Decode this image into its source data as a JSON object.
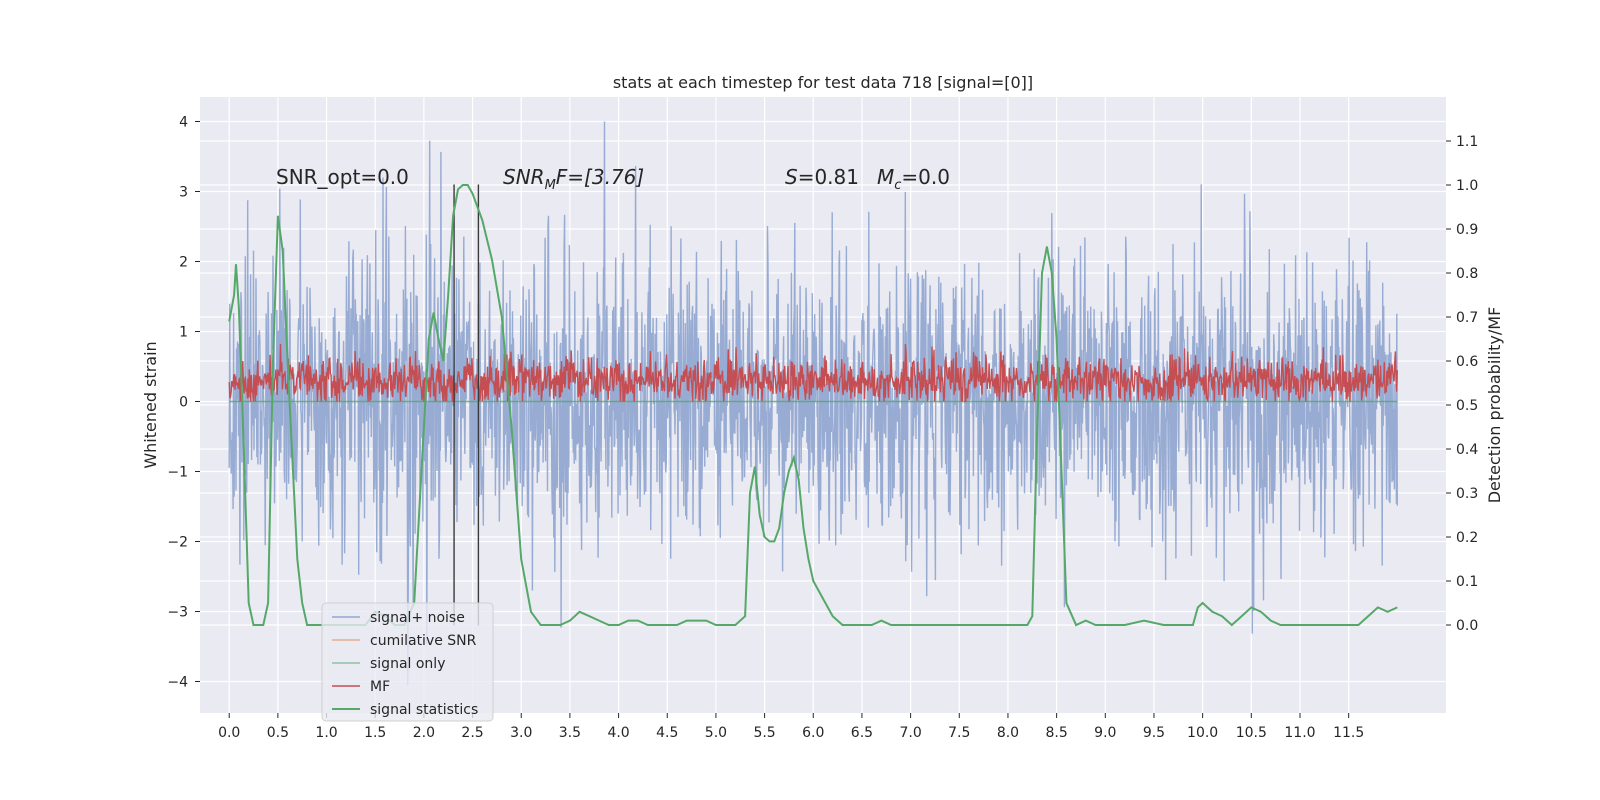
{
  "chart_data": {
    "type": "line",
    "title": "stats at each timestep for test data 718 [signal=[0]]",
    "xlabel": "",
    "ylabel": "Whitened strain",
    "ylabel_right": "Detection probability/MF",
    "xlim": [
      -0.3,
      12.5
    ],
    "ylim": [
      -4.45,
      4.35
    ],
    "ylim_right": [
      -0.2,
      1.2
    ],
    "x_ticks": [
      "0.0",
      "0.5",
      "1.0",
      "1.5",
      "2.0",
      "2.5",
      "3.0",
      "3.5",
      "4.0",
      "4.5",
      "5.0",
      "5.5",
      "6.0",
      "6.5",
      "7.0",
      "7.5",
      "8.0",
      "8.5",
      "9.0",
      "9.5",
      "10.0",
      "10.5",
      "11.0",
      "11.5"
    ],
    "y_ticks": [
      "4",
      "3",
      "2",
      "1",
      "0",
      "−1",
      "−2",
      "−3",
      "−4"
    ],
    "y_ticks_right": [
      "1.1",
      "1.0",
      "0.9",
      "0.8",
      "0.7",
      "0.6",
      "0.5",
      "0.4",
      "0.3",
      "0.2",
      "0.1",
      "0.0"
    ],
    "grid": true,
    "legend_position": "lower-left",
    "annotations": {
      "snr_opt": "SNR_opt=0.0",
      "snr_mf_main": "SNR",
      "snr_mf_sub": "M",
      "snr_mf_rest": "F=[3.76]",
      "stat_s": "S",
      "stat_s_rest": "=0.81",
      "stat_mc": "M",
      "stat_mc_sub": "c",
      "stat_mc_rest": "=0.0"
    },
    "vertical_lines_x": [
      2.31,
      2.56
    ],
    "series": [
      {
        "name": "signal+ noise",
        "color": "#92a8d1",
        "axis": "left",
        "approx_range": [
          -4.1,
          4.0
        ],
        "t_range": [
          0.0,
          12.0
        ]
      },
      {
        "name": "cumilative SNR",
        "color": "#dd8452",
        "axis": "left"
      },
      {
        "name": "signal only",
        "color": "#55a868",
        "axis": "left",
        "values_note": "0.0"
      },
      {
        "name": "MF",
        "color": "#c44e52",
        "axis": "left",
        "approx_range": [
          0.0,
          0.95
        ],
        "t_range": [
          0.0,
          12.0
        ]
      },
      {
        "name": "signal statistics",
        "color": "#55a868",
        "axis": "right",
        "points": [
          [
            0.0,
            0.69
          ],
          [
            0.05,
            0.75
          ],
          [
            0.07,
            0.82
          ],
          [
            0.1,
            0.72
          ],
          [
            0.15,
            0.4
          ],
          [
            0.2,
            0.05
          ],
          [
            0.25,
            0.0
          ],
          [
            0.3,
            0.0
          ],
          [
            0.35,
            0.0
          ],
          [
            0.4,
            0.05
          ],
          [
            0.45,
            0.6
          ],
          [
            0.5,
            0.93
          ],
          [
            0.55,
            0.85
          ],
          [
            0.6,
            0.6
          ],
          [
            0.7,
            0.15
          ],
          [
            0.75,
            0.05
          ],
          [
            0.8,
            0.0
          ],
          [
            0.9,
            0.0
          ],
          [
            1.0,
            0.0
          ],
          [
            1.1,
            0.0
          ],
          [
            1.2,
            0.0
          ],
          [
            1.3,
            0.0
          ],
          [
            1.4,
            0.0
          ],
          [
            1.5,
            0.03
          ],
          [
            1.6,
            0.02
          ],
          [
            1.7,
            0.0
          ],
          [
            1.8,
            0.0
          ],
          [
            1.9,
            0.05
          ],
          [
            2.0,
            0.45
          ],
          [
            2.05,
            0.65
          ],
          [
            2.1,
            0.71
          ],
          [
            2.15,
            0.65
          ],
          [
            2.2,
            0.6
          ],
          [
            2.25,
            0.75
          ],
          [
            2.3,
            0.93
          ],
          [
            2.35,
            0.99
          ],
          [
            2.4,
            1.0
          ],
          [
            2.45,
            1.0
          ],
          [
            2.5,
            0.98
          ],
          [
            2.6,
            0.92
          ],
          [
            2.7,
            0.83
          ],
          [
            2.8,
            0.7
          ],
          [
            2.9,
            0.45
          ],
          [
            3.0,
            0.15
          ],
          [
            3.1,
            0.03
          ],
          [
            3.2,
            0.0
          ],
          [
            3.3,
            0.0
          ],
          [
            3.4,
            0.0
          ],
          [
            3.5,
            0.01
          ],
          [
            3.6,
            0.03
          ],
          [
            3.7,
            0.02
          ],
          [
            3.8,
            0.01
          ],
          [
            3.9,
            0.0
          ],
          [
            4.0,
            0.0
          ],
          [
            4.1,
            0.01
          ],
          [
            4.2,
            0.01
          ],
          [
            4.3,
            0.0
          ],
          [
            4.4,
            0.0
          ],
          [
            4.5,
            0.0
          ],
          [
            4.6,
            0.0
          ],
          [
            4.7,
            0.01
          ],
          [
            4.8,
            0.01
          ],
          [
            4.9,
            0.01
          ],
          [
            5.0,
            0.0
          ],
          [
            5.1,
            0.0
          ],
          [
            5.2,
            0.0
          ],
          [
            5.3,
            0.02
          ],
          [
            5.35,
            0.3
          ],
          [
            5.4,
            0.36
          ],
          [
            5.45,
            0.25
          ],
          [
            5.5,
            0.2
          ],
          [
            5.55,
            0.19
          ],
          [
            5.6,
            0.19
          ],
          [
            5.65,
            0.22
          ],
          [
            5.7,
            0.3
          ],
          [
            5.75,
            0.35
          ],
          [
            5.8,
            0.38
          ],
          [
            5.85,
            0.33
          ],
          [
            5.9,
            0.22
          ],
          [
            5.95,
            0.15
          ],
          [
            6.0,
            0.1
          ],
          [
            6.1,
            0.06
          ],
          [
            6.2,
            0.02
          ],
          [
            6.3,
            0.0
          ],
          [
            6.4,
            0.0
          ],
          [
            6.5,
            0.0
          ],
          [
            6.6,
            0.0
          ],
          [
            6.7,
            0.01
          ],
          [
            6.8,
            0.0
          ],
          [
            6.9,
            0.0
          ],
          [
            7.0,
            0.0
          ],
          [
            7.2,
            0.0
          ],
          [
            7.4,
            0.0
          ],
          [
            7.6,
            0.0
          ],
          [
            7.8,
            0.0
          ],
          [
            8.0,
            0.0
          ],
          [
            8.1,
            0.0
          ],
          [
            8.2,
            0.0
          ],
          [
            8.25,
            0.02
          ],
          [
            8.3,
            0.45
          ],
          [
            8.35,
            0.8
          ],
          [
            8.4,
            0.86
          ],
          [
            8.45,
            0.8
          ],
          [
            8.5,
            0.65
          ],
          [
            8.55,
            0.35
          ],
          [
            8.6,
            0.05
          ],
          [
            8.7,
            0.0
          ],
          [
            8.8,
            0.01
          ],
          [
            8.9,
            0.0
          ],
          [
            9.0,
            0.0
          ],
          [
            9.2,
            0.0
          ],
          [
            9.4,
            0.01
          ],
          [
            9.6,
            0.0
          ],
          [
            9.8,
            0.0
          ],
          [
            9.9,
            0.0
          ],
          [
            9.95,
            0.04
          ],
          [
            10.0,
            0.05
          ],
          [
            10.1,
            0.03
          ],
          [
            10.2,
            0.02
          ],
          [
            10.3,
            0.0
          ],
          [
            10.4,
            0.02
          ],
          [
            10.5,
            0.04
          ],
          [
            10.6,
            0.03
          ],
          [
            10.7,
            0.01
          ],
          [
            10.8,
            0.0
          ],
          [
            11.0,
            0.0
          ],
          [
            11.2,
            0.0
          ],
          [
            11.4,
            0.0
          ],
          [
            11.6,
            0.0
          ],
          [
            11.7,
            0.02
          ],
          [
            11.8,
            0.04
          ],
          [
            11.9,
            0.03
          ],
          [
            12.0,
            0.04
          ]
        ]
      }
    ]
  }
}
